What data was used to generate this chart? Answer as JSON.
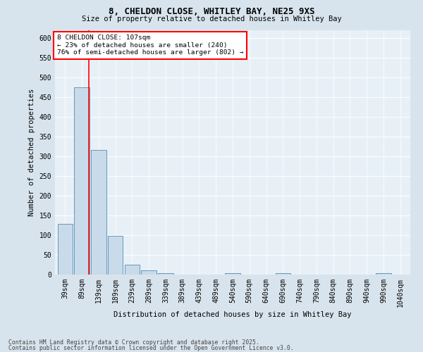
{
  "title_line1": "8, CHELDON CLOSE, WHITLEY BAY, NE25 9XS",
  "title_line2": "Size of property relative to detached houses in Whitley Bay",
  "xlabel": "Distribution of detached houses by size in Whitley Bay",
  "ylabel": "Number of detached properties",
  "categories": [
    "39sqm",
    "89sqm",
    "139sqm",
    "189sqm",
    "239sqm",
    "289sqm",
    "339sqm",
    "389sqm",
    "439sqm",
    "489sqm",
    "540sqm",
    "590sqm",
    "640sqm",
    "690sqm",
    "740sqm",
    "790sqm",
    "840sqm",
    "890sqm",
    "940sqm",
    "990sqm",
    "1040sqm"
  ],
  "bar_values": [
    128,
    475,
    315,
    98,
    25,
    10,
    4,
    0,
    0,
    0,
    4,
    0,
    0,
    3,
    0,
    0,
    0,
    0,
    0,
    4,
    0
  ],
  "bar_color": "#c9daea",
  "bar_edge_color": "#6699bb",
  "annotation_text": "8 CHELDON CLOSE: 107sqm\n← 23% of detached houses are smaller (240)\n76% of semi-detached houses are larger (802) →",
  "red_line_x": 1.42,
  "ylim": [
    0,
    620
  ],
  "yticks": [
    0,
    50,
    100,
    150,
    200,
    250,
    300,
    350,
    400,
    450,
    500,
    550,
    600
  ],
  "footer_line1": "Contains HM Land Registry data © Crown copyright and database right 2025.",
  "footer_line2": "Contains public sector information licensed under the Open Government Licence v3.0.",
  "bg_color": "#d8e4ed",
  "plot_bg_color": "#e8f0f7"
}
